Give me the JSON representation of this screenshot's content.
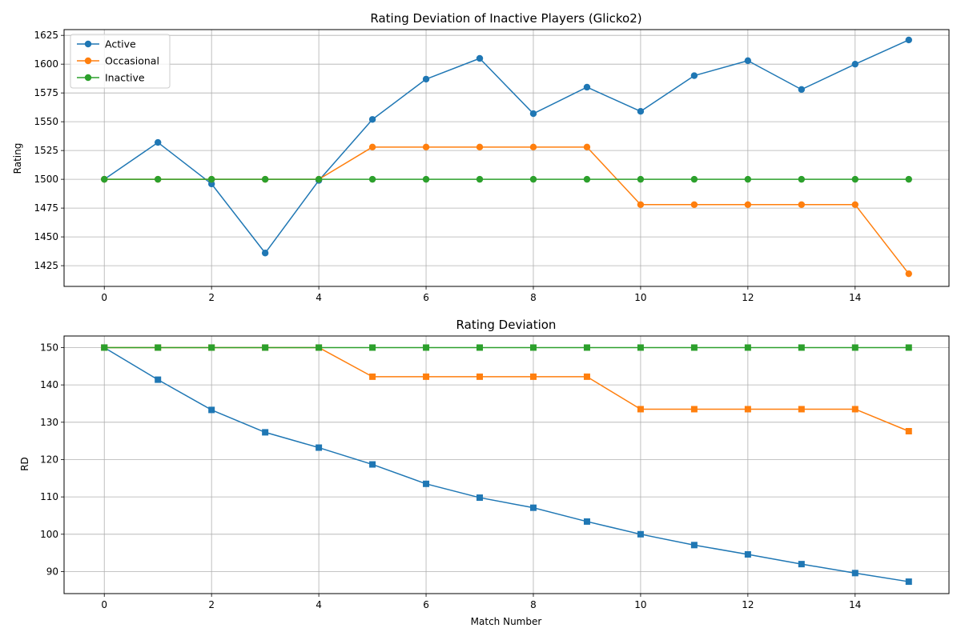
{
  "chart_data": [
    {
      "type": "line",
      "title": "Rating Deviation of Inactive Players (Glicko2)",
      "xlabel": "",
      "ylabel": "Rating",
      "x": [
        0,
        1,
        2,
        3,
        4,
        5,
        6,
        7,
        8,
        9,
        10,
        11,
        12,
        13,
        14,
        15
      ],
      "xlim": [
        -0.75,
        15.75
      ],
      "ylim": [
        1407,
        1630
      ],
      "xticks": [
        0,
        2,
        4,
        6,
        8,
        10,
        12,
        14
      ],
      "yticks": [
        1425,
        1450,
        1475,
        1500,
        1525,
        1550,
        1575,
        1600,
        1625
      ],
      "grid": true,
      "marker": "circle",
      "legend": "top-left",
      "series": [
        {
          "name": "Active",
          "color": "#1f77b4",
          "values": [
            1500,
            1532,
            1496,
            1436,
            1499,
            1552,
            1587,
            1605,
            1557,
            1580,
            1559,
            1590,
            1603,
            1578,
            1600,
            1621
          ]
        },
        {
          "name": "Occasional",
          "color": "#ff7f0e",
          "values": [
            1500,
            1500,
            1500,
            1500,
            1500,
            1528,
            1528,
            1528,
            1528,
            1528,
            1478,
            1478,
            1478,
            1478,
            1478,
            1418
          ]
        },
        {
          "name": "Inactive",
          "color": "#2ca02c",
          "values": [
            1500,
            1500,
            1500,
            1500,
            1500,
            1500,
            1500,
            1500,
            1500,
            1500,
            1500,
            1500,
            1500,
            1500,
            1500,
            1500
          ]
        }
      ]
    },
    {
      "type": "line",
      "title": "Rating Deviation",
      "xlabel": "Match Number",
      "ylabel": "RD",
      "x": [
        0,
        1,
        2,
        3,
        4,
        5,
        6,
        7,
        8,
        9,
        10,
        11,
        12,
        13,
        14,
        15
      ],
      "xlim": [
        -0.75,
        15.75
      ],
      "ylim": [
        84.1,
        153.1
      ],
      "xticks": [
        0,
        2,
        4,
        6,
        8,
        10,
        12,
        14
      ],
      "yticks": [
        90,
        100,
        110,
        120,
        130,
        140,
        150
      ],
      "grid": true,
      "marker": "square",
      "series": [
        {
          "name": "Active",
          "color": "#1f77b4",
          "values": [
            150,
            141.4,
            133.3,
            127.3,
            123.2,
            118.7,
            113.5,
            109.8,
            107.1,
            103.4,
            100.0,
            97.1,
            94.6,
            92.0,
            89.6,
            87.3
          ]
        },
        {
          "name": "Occasional",
          "color": "#ff7f0e",
          "values": [
            150,
            150,
            150,
            150,
            150,
            142.2,
            142.2,
            142.2,
            142.2,
            142.2,
            133.5,
            133.5,
            133.5,
            133.5,
            133.5,
            127.6
          ]
        },
        {
          "name": "Inactive",
          "color": "#2ca02c",
          "values": [
            150,
            150,
            150,
            150,
            150,
            150,
            150,
            150,
            150,
            150,
            150,
            150,
            150,
            150,
            150,
            150
          ]
        }
      ]
    }
  ]
}
